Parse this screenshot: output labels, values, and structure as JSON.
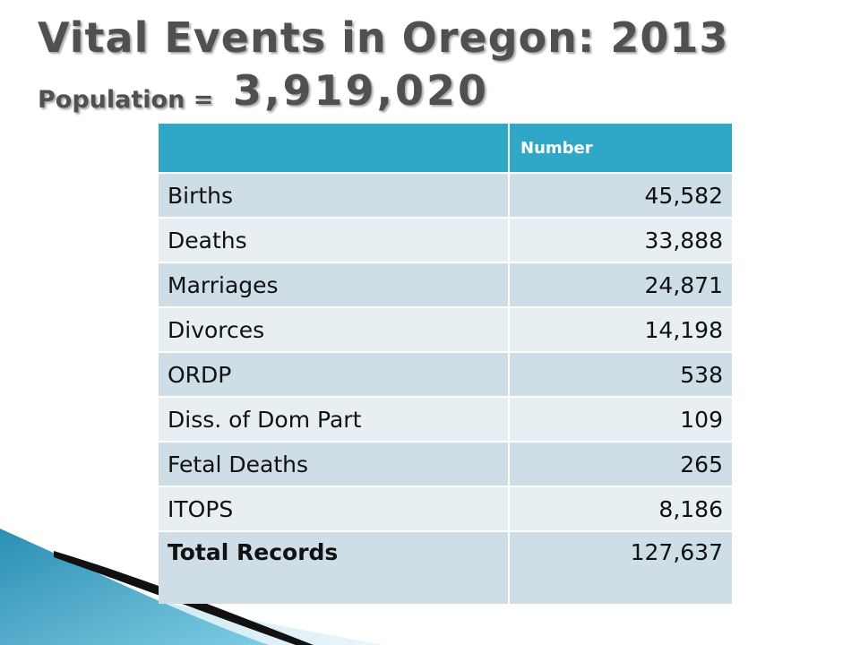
{
  "title": {
    "line1": "Vital Events in Oregon: 2013",
    "population_label": "Population =",
    "population_value": "3,919,020"
  },
  "table": {
    "header": {
      "label": "",
      "number": "Number"
    },
    "rows": [
      {
        "label": "Births",
        "value": "45,582"
      },
      {
        "label": "Deaths",
        "value": "33,888"
      },
      {
        "label": "Marriages",
        "value": "24,871"
      },
      {
        "label": "Divorces",
        "value": "14,198"
      },
      {
        "label": "ORDP",
        "value": "538"
      },
      {
        "label": "Diss. of Dom Part",
        "value": "109"
      },
      {
        "label": "Fetal Deaths",
        "value": "265"
      },
      {
        "label": "ITOPS",
        "value": "8,186"
      }
    ],
    "total": {
      "label": "Total Records",
      "value": "127,637"
    }
  },
  "colors": {
    "header_fill": "#31a7c8",
    "row_odd": "#cfdde6",
    "row_even": "#e8eff3",
    "title_text": "#505050"
  }
}
